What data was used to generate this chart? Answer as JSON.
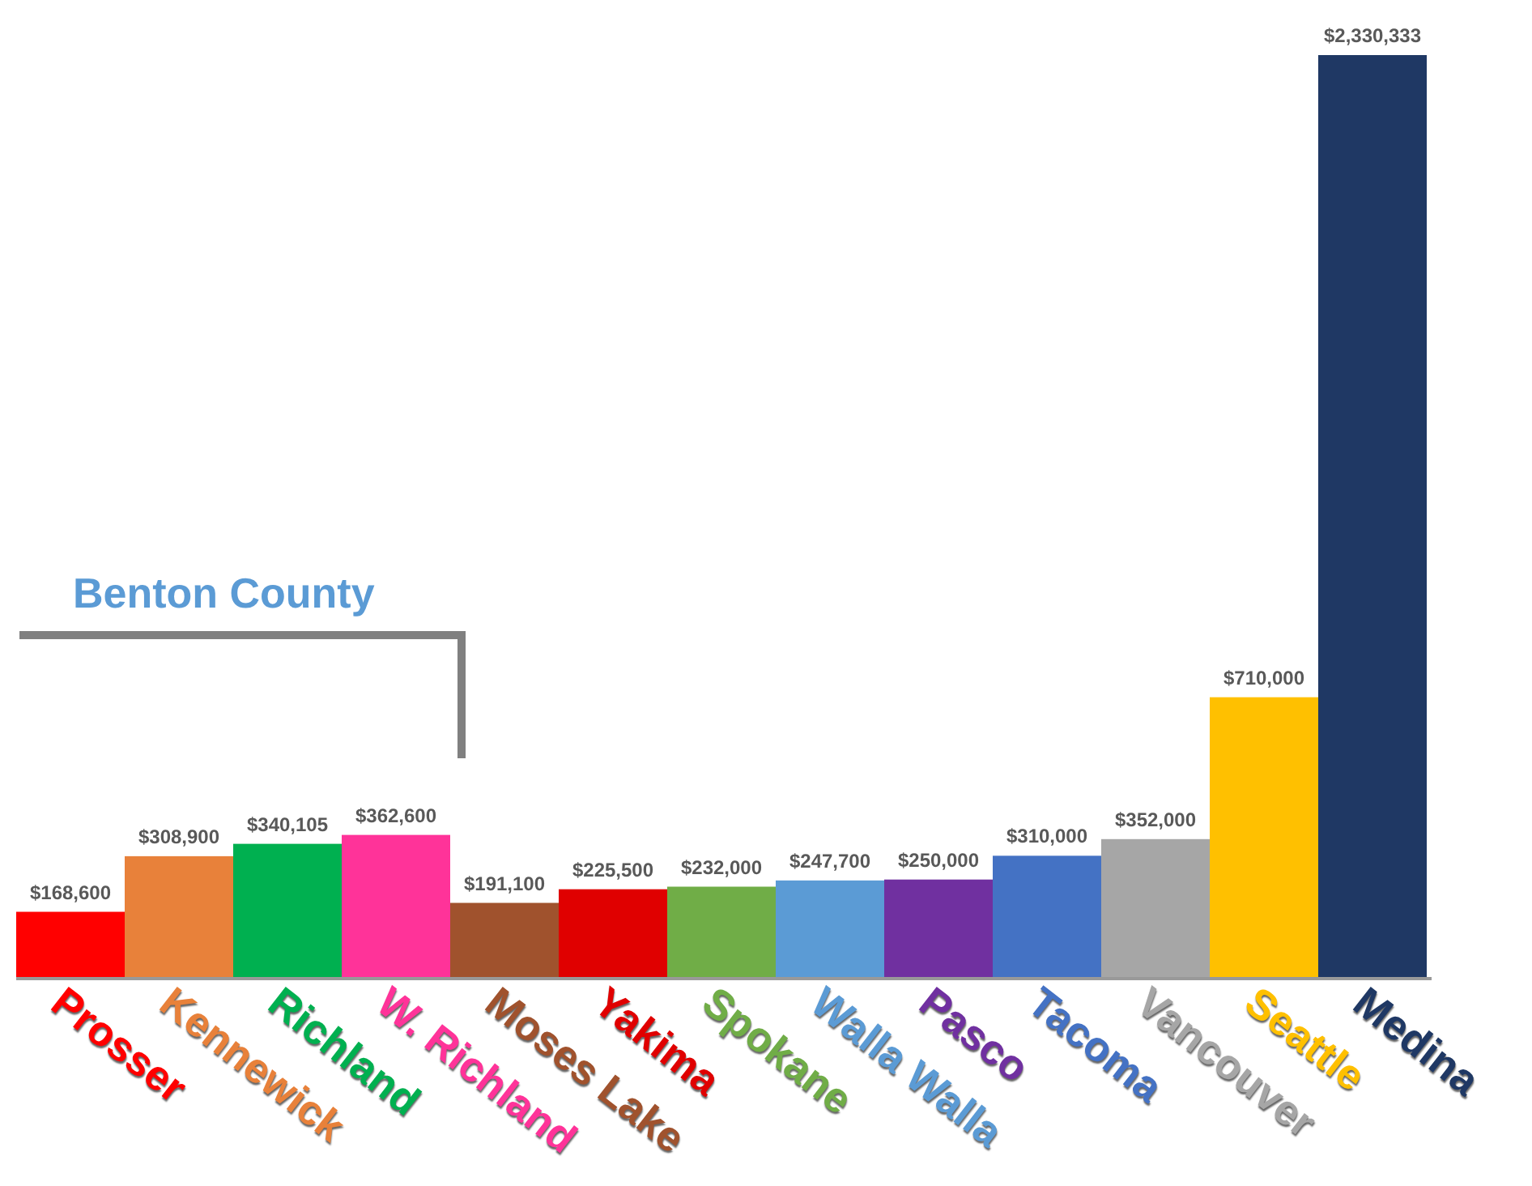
{
  "chart_data": {
    "type": "bar",
    "categories": [
      "Prosser",
      "Kennewick",
      "Richland",
      "W. Richland",
      "Moses Lake",
      "Yakima",
      "Spokane",
      "Walla Walla",
      "Pasco",
      "Tacoma",
      "Vancouver",
      "Seattle",
      "Medina"
    ],
    "values": [
      168600,
      308900,
      340105,
      362600,
      191100,
      225500,
      232000,
      247700,
      250000,
      310000,
      352000,
      710000,
      2330333
    ],
    "value_labels": [
      "$168,600",
      "$308,900",
      "$340,105",
      "$362,600",
      "$191,100",
      "$225,500",
      "$232,000",
      "$247,700",
      "$250,000",
      "$310,000",
      "$352,000",
      "$710,000",
      "$2,330,333"
    ],
    "colors": [
      "#ff0000",
      "#e8813a",
      "#00b050",
      "#ff3399",
      "#a0522d",
      "#e00000",
      "#70ad47",
      "#5b9bd5",
      "#7030a0",
      "#4472c4",
      "#a6a6a6",
      "#ffc000",
      "#1f3864"
    ],
    "annotations": [
      "Benton County"
    ]
  }
}
